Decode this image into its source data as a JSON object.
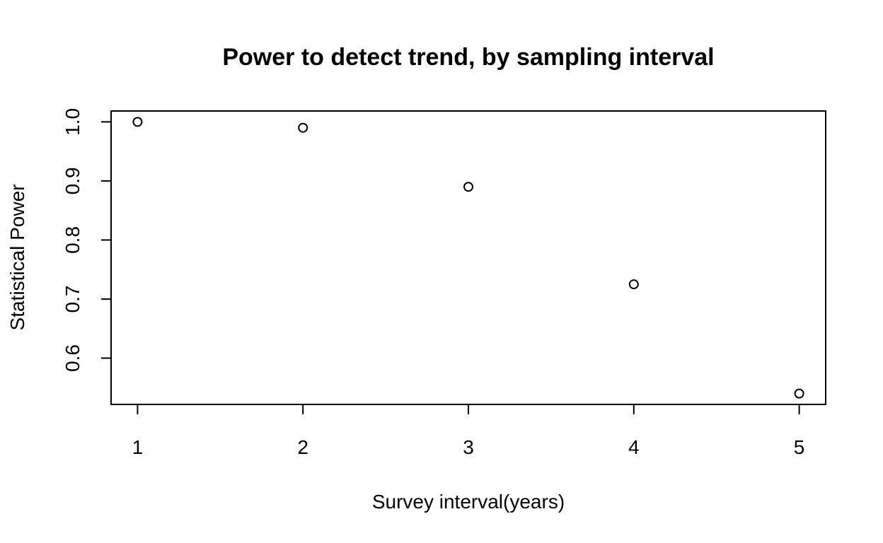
{
  "chart_data": {
    "type": "scatter",
    "title": "Power to detect trend, by sampling interval",
    "xlabel": "Survey interval(years)",
    "ylabel": "Statistical Power",
    "x": [
      1,
      2,
      3,
      4,
      5
    ],
    "y": [
      1.0,
      0.99,
      0.89,
      0.725,
      0.54
    ],
    "x_ticks": [
      1,
      2,
      3,
      4,
      5
    ],
    "x_tick_labels": [
      "1",
      "2",
      "3",
      "4",
      "5"
    ],
    "y_ticks": [
      0.6,
      0.7,
      0.8,
      0.9,
      1.0
    ],
    "y_tick_labels": [
      "0.6",
      "0.7",
      "0.8",
      "0.9",
      "1.0"
    ],
    "xlim": [
      0.84,
      5.16
    ],
    "ylim": [
      0.5216,
      1.0184
    ],
    "grid": false,
    "marker": "open-circle",
    "colors": {
      "points": "#000000",
      "axes": "#000000",
      "background": "#ffffff"
    }
  }
}
